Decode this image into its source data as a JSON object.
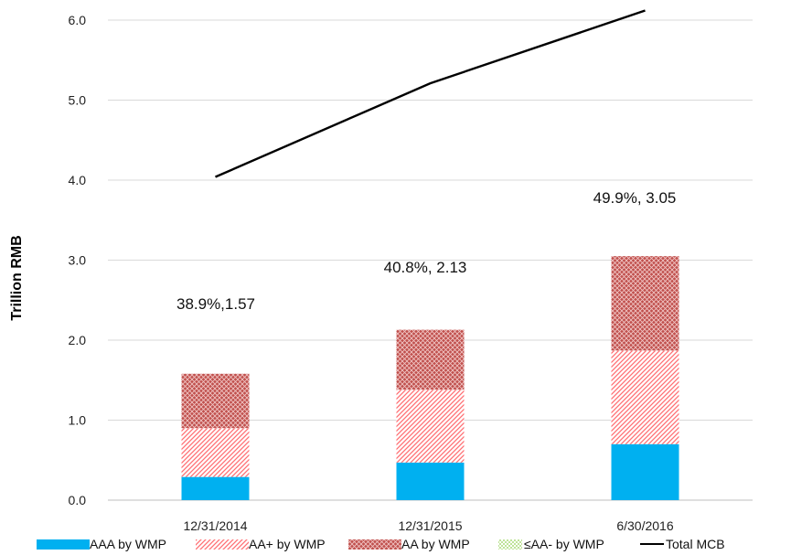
{
  "chart_data": {
    "type": "bar",
    "stacked": true,
    "categories": [
      "12/31/2014",
      "12/31/2015",
      "6/30/2016"
    ],
    "ylabel": "Trillion RMB",
    "ylim": [
      0,
      6.0
    ],
    "yticks": [
      "0.0",
      "1.0",
      "2.0",
      "3.0",
      "4.0",
      "5.0",
      "6.0"
    ],
    "grid": true,
    "legend_position": "bottom",
    "series": [
      {
        "name": "AAA by WMP",
        "values": [
          0.29,
          0.47,
          0.7
        ],
        "color": "#00b0f0",
        "style": "solid"
      },
      {
        "name": "AA+ by WMP",
        "values": [
          0.61,
          0.91,
          1.17
        ],
        "color": "#ff7c80",
        "style": "diagonal"
      },
      {
        "name": "AA by WMP",
        "values": [
          0.68,
          0.75,
          1.18
        ],
        "color": "#c0504d",
        "style": "crosshatch"
      },
      {
        "name": "≤AA- by WMP",
        "values": [
          0,
          0,
          0
        ],
        "color": "#92d050",
        "style": "dotted"
      }
    ],
    "line_series": {
      "name": "Total MCB",
      "values": [
        4.04,
        5.21,
        6.12
      ],
      "color": "#000000"
    },
    "bar_annotations": [
      "38.9%,1.57",
      "40.8%, 2.13",
      "49.9%, 3.05"
    ]
  }
}
